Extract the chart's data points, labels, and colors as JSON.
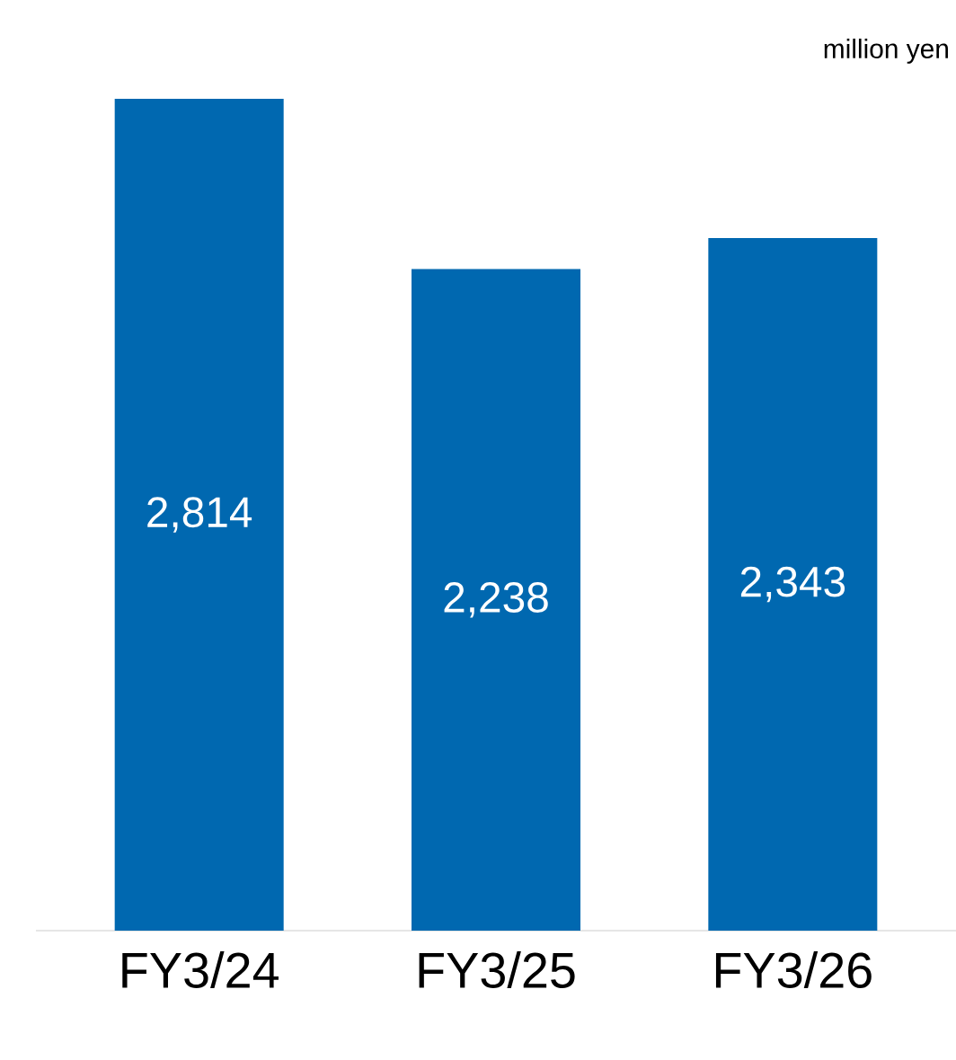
{
  "chart_data": {
    "type": "bar",
    "categories": [
      "FY3/24",
      "FY3/25",
      "FY3/26"
    ],
    "values": [
      2814,
      2238,
      2343
    ],
    "color": "#0068b0",
    "value_labels": [
      "2,814",
      "2,238",
      "2,343"
    ],
    "annotations": [
      "million yen"
    ]
  }
}
